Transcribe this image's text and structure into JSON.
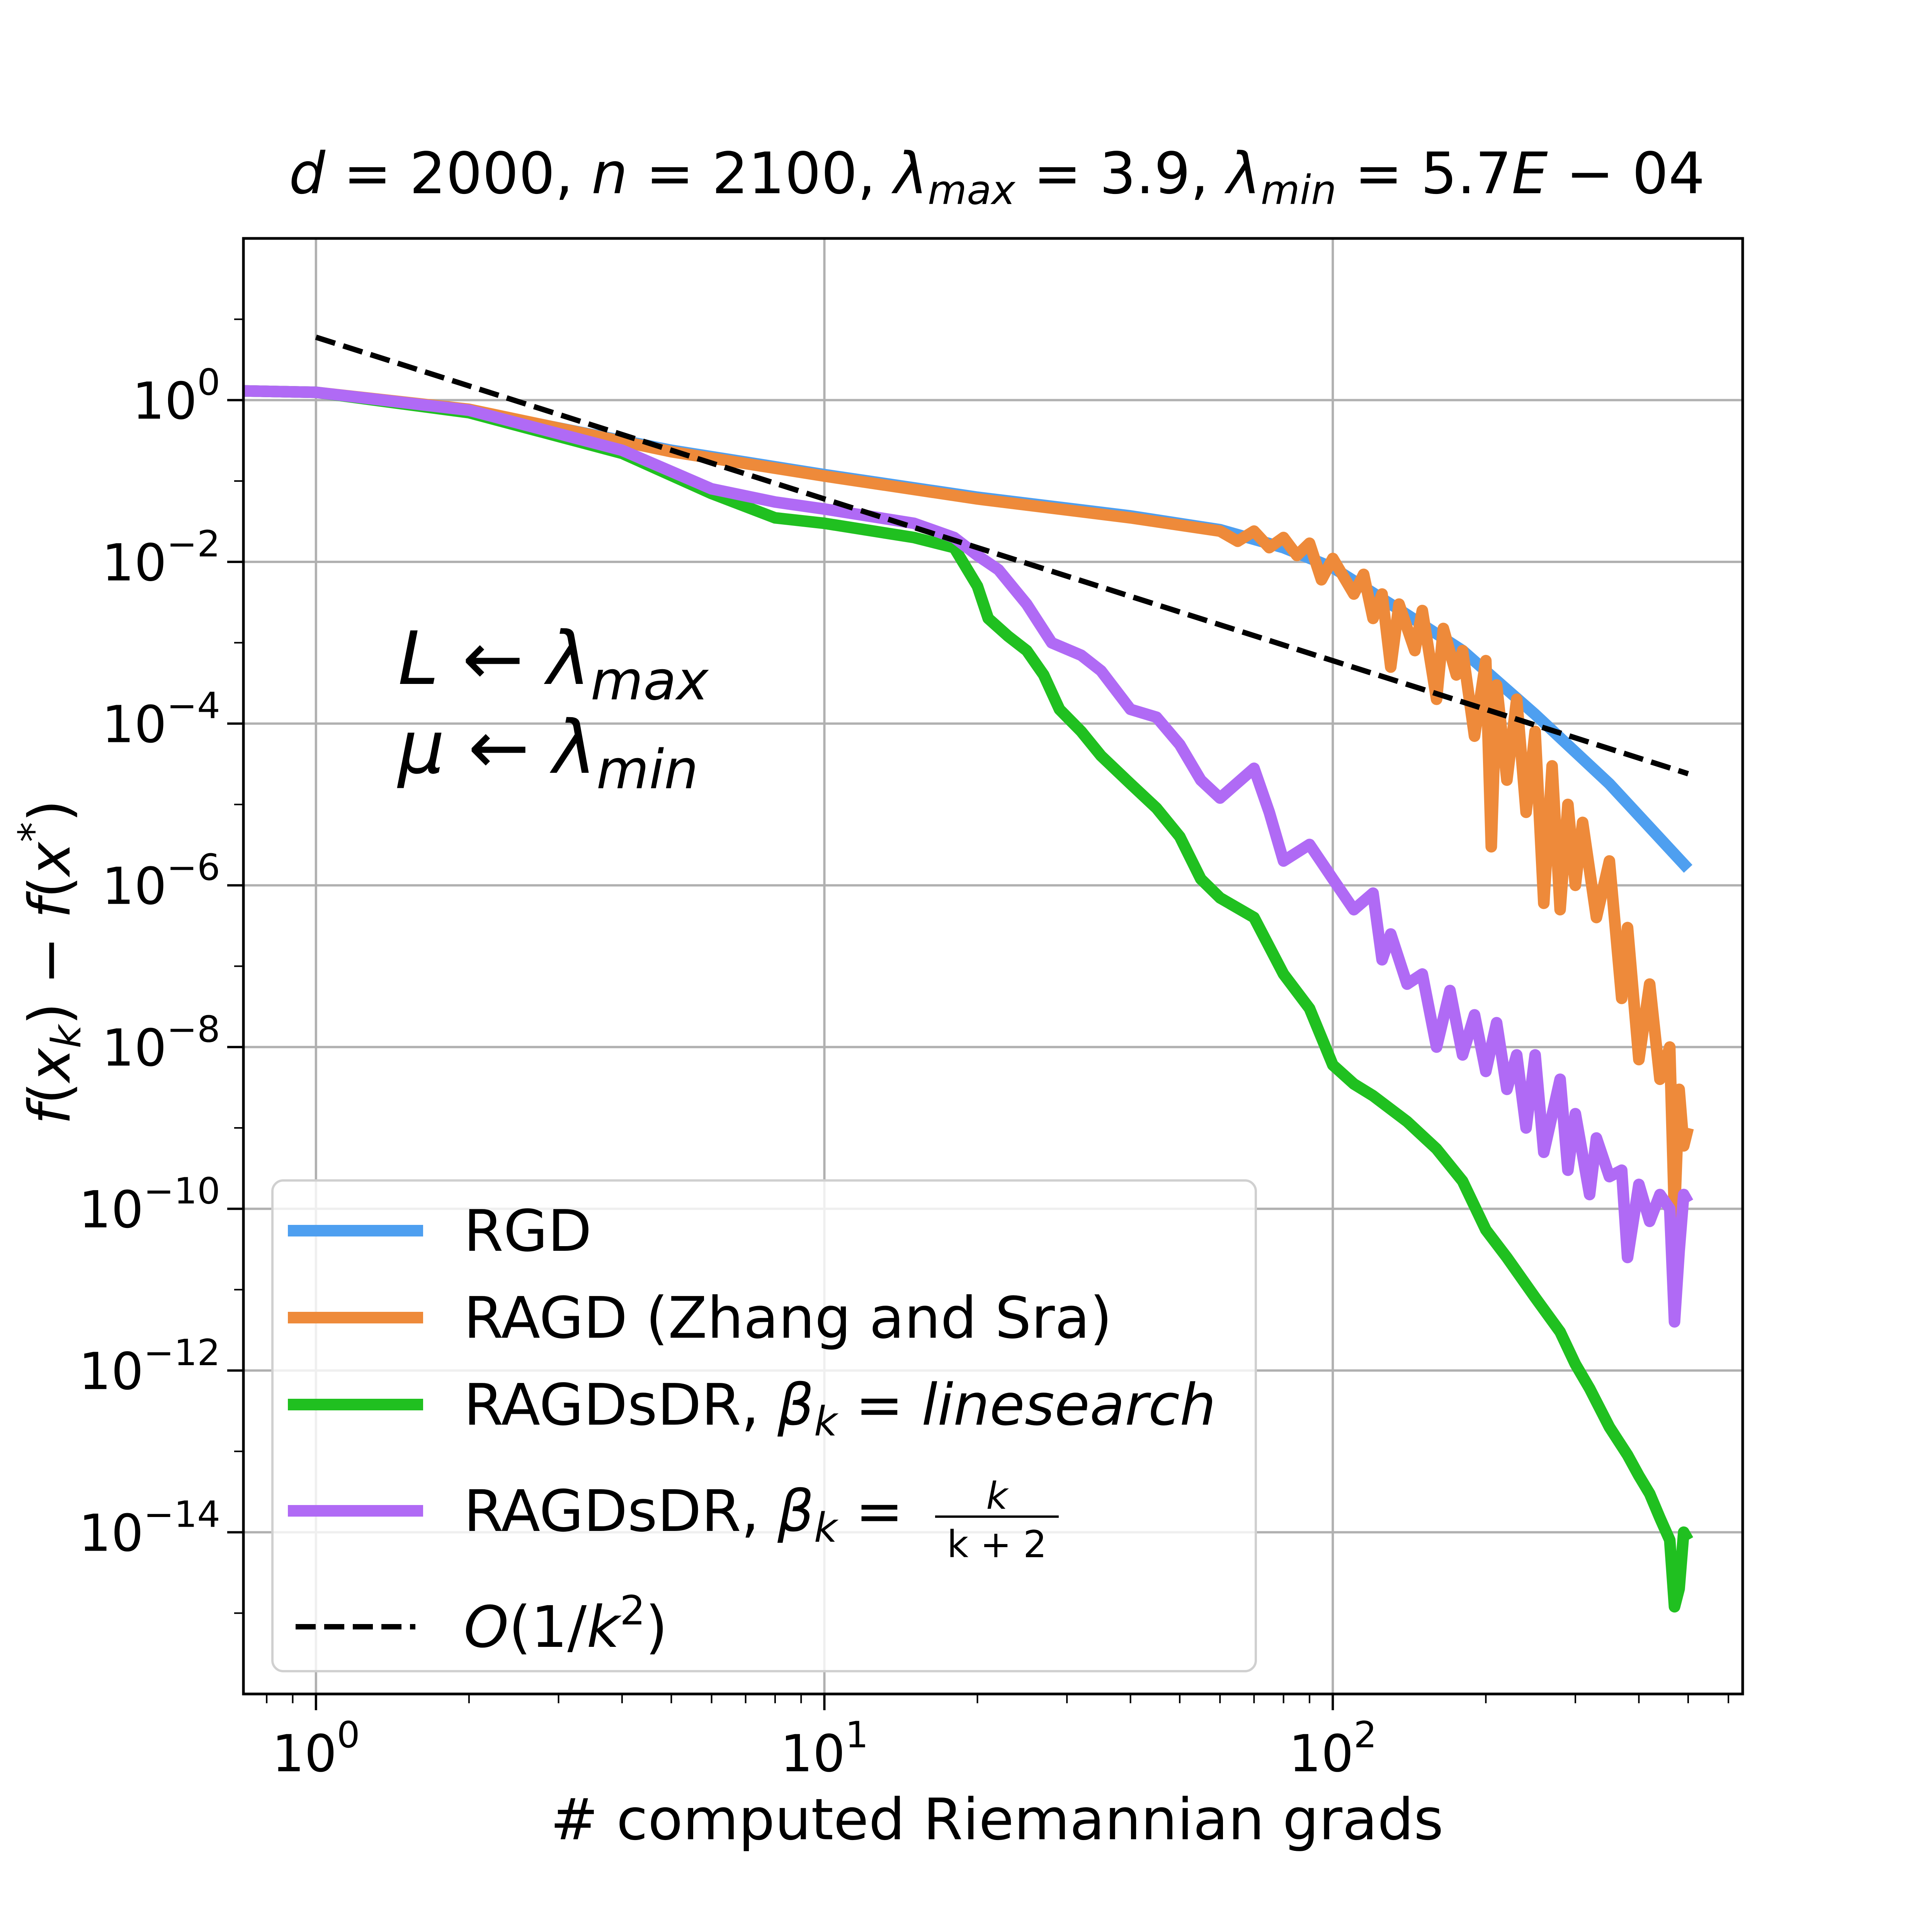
{
  "chart_data": {
    "type": "line",
    "title": {
      "d_sym": "d",
      "d_val": "2000",
      "n_sym": "n",
      "n_val": "2100",
      "lam_sym": "λ",
      "max_sub": "max",
      "lam_max_val": "3.9",
      "min_sub": "min",
      "lam_min_val": "5.7",
      "lam_min_exp_letter": "E",
      "lam_min_exp_digits": "04"
    },
    "xlabel": "# computed Riemannian grads",
    "ylabel": {
      "f1": "f",
      "x1": "x",
      "k_sub": "k",
      "f2": "f",
      "x2": "x",
      "star": "*"
    },
    "annotation": {
      "L": "L",
      "lambda": "λ",
      "max": "max",
      "mu": "μ",
      "min": "min"
    },
    "xscale": "log",
    "yscale": "log",
    "xlim": [
      0.72,
      640
    ],
    "ylim": [
      1e-16,
      100
    ],
    "xticks": [
      {
        "value": 1,
        "base": "10",
        "exp": "0"
      },
      {
        "value": 10,
        "base": "10",
        "exp": "1"
      },
      {
        "value": 100,
        "base": "10",
        "exp": "2"
      }
    ],
    "yticks": [
      {
        "value": 1,
        "base": "10",
        "exp": "0"
      },
      {
        "value": 0.01,
        "base": "10",
        "exp": "−2"
      },
      {
        "value": 0.0001,
        "base": "10",
        "exp": "−4"
      },
      {
        "value": 1e-06,
        "base": "10",
        "exp": "−6"
      },
      {
        "value": 1e-08,
        "base": "10",
        "exp": "−8"
      },
      {
        "value": 1e-10,
        "base": "10",
        "exp": "−10"
      },
      {
        "value": 1e-12,
        "base": "10",
        "exp": "−12"
      },
      {
        "value": 1e-14,
        "base": "10",
        "exp": "−14"
      }
    ],
    "grid": true,
    "legend_position": "bottom-left",
    "legend": [
      {
        "key": "rgd",
        "label": "RGD"
      },
      {
        "key": "ragd",
        "label": "RAGD (Zhang and Sra)"
      },
      {
        "key": "ls",
        "label_prefix": "RAGDsDR, ",
        "beta": "β",
        "k": "k",
        "rhs": "linesearch"
      },
      {
        "key": "frac",
        "label_prefix": "RAGDsDR, ",
        "beta": "β",
        "k": "k",
        "num": "k",
        "den": "k + 2"
      },
      {
        "key": "ref",
        "big_o": "O",
        "paren_open": "(1/",
        "k": "k",
        "sq": "2",
        "paren_close": ")"
      }
    ],
    "series": [
      {
        "key": "rgd",
        "name": "RGD",
        "color": "#4e9ff0",
        "points": [
          [
            0.72,
            1.3
          ],
          [
            1,
            1.25
          ],
          [
            2,
            0.75
          ],
          [
            5,
            0.24
          ],
          [
            10,
            0.12
          ],
          [
            20,
            0.063
          ],
          [
            40,
            0.037
          ],
          [
            60,
            0.025
          ],
          [
            80,
            0.015
          ],
          [
            100,
            0.0085
          ],
          [
            130,
            0.003
          ],
          [
            180,
            0.0008
          ],
          [
            250,
            0.00013
          ],
          [
            350,
            1.8e-05
          ],
          [
            500,
            1.6e-06
          ]
        ]
      },
      {
        "key": "ragd",
        "name": "RAGD (Zhang and Sra)",
        "color": "#ee8a3a",
        "points": [
          [
            0.72,
            1.3
          ],
          [
            1,
            1.25
          ],
          [
            2,
            0.77
          ],
          [
            5,
            0.23
          ],
          [
            10,
            0.115
          ],
          [
            20,
            0.06
          ],
          [
            40,
            0.035
          ],
          [
            60,
            0.024
          ],
          [
            65,
            0.018
          ],
          [
            70,
            0.024
          ],
          [
            75,
            0.015
          ],
          [
            80,
            0.02
          ],
          [
            85,
            0.012
          ],
          [
            90,
            0.017
          ],
          [
            95,
            0.006
          ],
          [
            100,
            0.011
          ],
          [
            110,
            0.004
          ],
          [
            115,
            0.007
          ],
          [
            120,
            0.002
          ],
          [
            125,
            0.004
          ],
          [
            130,
            0.0005
          ],
          [
            135,
            0.003
          ],
          [
            145,
            0.0008
          ],
          [
            150,
            0.0025
          ],
          [
            160,
            0.0002
          ],
          [
            165,
            0.0015
          ],
          [
            175,
            0.0004
          ],
          [
            180,
            0.0008
          ],
          [
            190,
            7e-05
          ],
          [
            200,
            0.0006
          ],
          [
            205,
            3e-06
          ],
          [
            210,
            0.0003
          ],
          [
            220,
            2e-05
          ],
          [
            230,
            0.0002
          ],
          [
            240,
            8e-06
          ],
          [
            250,
            8e-05
          ],
          [
            260,
            6e-07
          ],
          [
            270,
            3e-05
          ],
          [
            280,
            5e-07
          ],
          [
            290,
            1e-05
          ],
          [
            300,
            1e-06
          ],
          [
            310,
            6e-06
          ],
          [
            330,
            4e-07
          ],
          [
            350,
            2e-06
          ],
          [
            370,
            4e-08
          ],
          [
            380,
            3e-07
          ],
          [
            400,
            7e-09
          ],
          [
            420,
            6e-08
          ],
          [
            440,
            4e-09
          ],
          [
            460,
            1e-08
          ],
          [
            470,
            8e-11
          ],
          [
            480,
            3e-09
          ],
          [
            490,
            6e-10
          ],
          [
            500,
            1e-09
          ]
        ]
      },
      {
        "key": "ls",
        "name": "RAGDsDR, linesearch",
        "color": "#20c020",
        "points": [
          [
            0.72,
            1.3
          ],
          [
            1,
            1.25
          ],
          [
            2,
            0.7
          ],
          [
            4,
            0.22
          ],
          [
            6,
            0.07
          ],
          [
            8,
            0.035
          ],
          [
            10,
            0.03
          ],
          [
            15,
            0.02
          ],
          [
            18,
            0.015
          ],
          [
            20,
            0.005
          ],
          [
            21,
            0.002
          ],
          [
            23,
            0.0012
          ],
          [
            25,
            0.0008
          ],
          [
            27,
            0.0004
          ],
          [
            29,
            0.00015
          ],
          [
            32,
            8e-05
          ],
          [
            35,
            4e-05
          ],
          [
            40,
            1.8e-05
          ],
          [
            45,
            9e-06
          ],
          [
            50,
            4e-06
          ],
          [
            55,
            1.2e-06
          ],
          [
            60,
            7e-07
          ],
          [
            70,
            4e-07
          ],
          [
            80,
            8e-08
          ],
          [
            90,
            3e-08
          ],
          [
            100,
            6e-09
          ],
          [
            110,
            3.5e-09
          ],
          [
            120,
            2.5e-09
          ],
          [
            140,
            1.2e-09
          ],
          [
            160,
            5.5e-10
          ],
          [
            180,
            2.2e-10
          ],
          [
            200,
            5.5e-11
          ],
          [
            220,
            2.5e-11
          ],
          [
            250,
            8e-12
          ],
          [
            280,
            3e-12
          ],
          [
            300,
            1.2e-12
          ],
          [
            320,
            6e-13
          ],
          [
            350,
            2e-13
          ],
          [
            380,
            9e-14
          ],
          [
            400,
            5e-14
          ],
          [
            420,
            3e-14
          ],
          [
            440,
            1.5e-14
          ],
          [
            460,
            8e-15
          ],
          [
            470,
            1.2e-15
          ],
          [
            480,
            2e-15
          ],
          [
            490,
            1e-14
          ],
          [
            500,
            8e-15
          ]
        ]
      },
      {
        "key": "frac",
        "name": "RAGDsDR, k/(k+2)",
        "color": "#b06af5",
        "points": [
          [
            0.72,
            1.3
          ],
          [
            1,
            1.25
          ],
          [
            2,
            0.75
          ],
          [
            4,
            0.24
          ],
          [
            6,
            0.08
          ],
          [
            8,
            0.055
          ],
          [
            10,
            0.045
          ],
          [
            15,
            0.03
          ],
          [
            18,
            0.02
          ],
          [
            20,
            0.012
          ],
          [
            22,
            0.008
          ],
          [
            25,
            0.003
          ],
          [
            28,
            0.001
          ],
          [
            32,
            0.0007
          ],
          [
            35,
            0.00045
          ],
          [
            40,
            0.00015
          ],
          [
            45,
            0.00012
          ],
          [
            50,
            5.5e-05
          ],
          [
            55,
            2e-05
          ],
          [
            60,
            1.2e-05
          ],
          [
            70,
            2.8e-05
          ],
          [
            75,
            8e-06
          ],
          [
            80,
            2e-06
          ],
          [
            90,
            3.2e-06
          ],
          [
            100,
            1.2e-06
          ],
          [
            110,
            5e-07
          ],
          [
            120,
            8e-07
          ],
          [
            125,
            1.2e-07
          ],
          [
            130,
            2.5e-07
          ],
          [
            140,
            6e-08
          ],
          [
            150,
            8e-08
          ],
          [
            160,
            1e-08
          ],
          [
            170,
            5e-08
          ],
          [
            180,
            8e-09
          ],
          [
            190,
            2.5e-08
          ],
          [
            200,
            5e-09
          ],
          [
            210,
            2e-08
          ],
          [
            220,
            3e-09
          ],
          [
            230,
            8e-09
          ],
          [
            240,
            1e-09
          ],
          [
            250,
            8e-09
          ],
          [
            260,
            5e-10
          ],
          [
            280,
            4e-09
          ],
          [
            290,
            3e-10
          ],
          [
            300,
            1.5e-09
          ],
          [
            320,
            1.5e-10
          ],
          [
            330,
            7.5e-10
          ],
          [
            350,
            2.5e-10
          ],
          [
            370,
            3e-10
          ],
          [
            380,
            2.5e-11
          ],
          [
            400,
            2e-10
          ],
          [
            420,
            7e-11
          ],
          [
            440,
            1.5e-10
          ],
          [
            460,
            1e-10
          ],
          [
            470,
            4e-12
          ],
          [
            480,
            3e-11
          ],
          [
            490,
            1.5e-10
          ],
          [
            500,
            1.2e-10
          ]
        ]
      },
      {
        "key": "ref",
        "name": "O(1/k^2)",
        "color": "#000000",
        "dashed": true,
        "points": [
          [
            1,
            6
          ],
          [
            500,
            2.4e-05
          ]
        ]
      }
    ]
  }
}
